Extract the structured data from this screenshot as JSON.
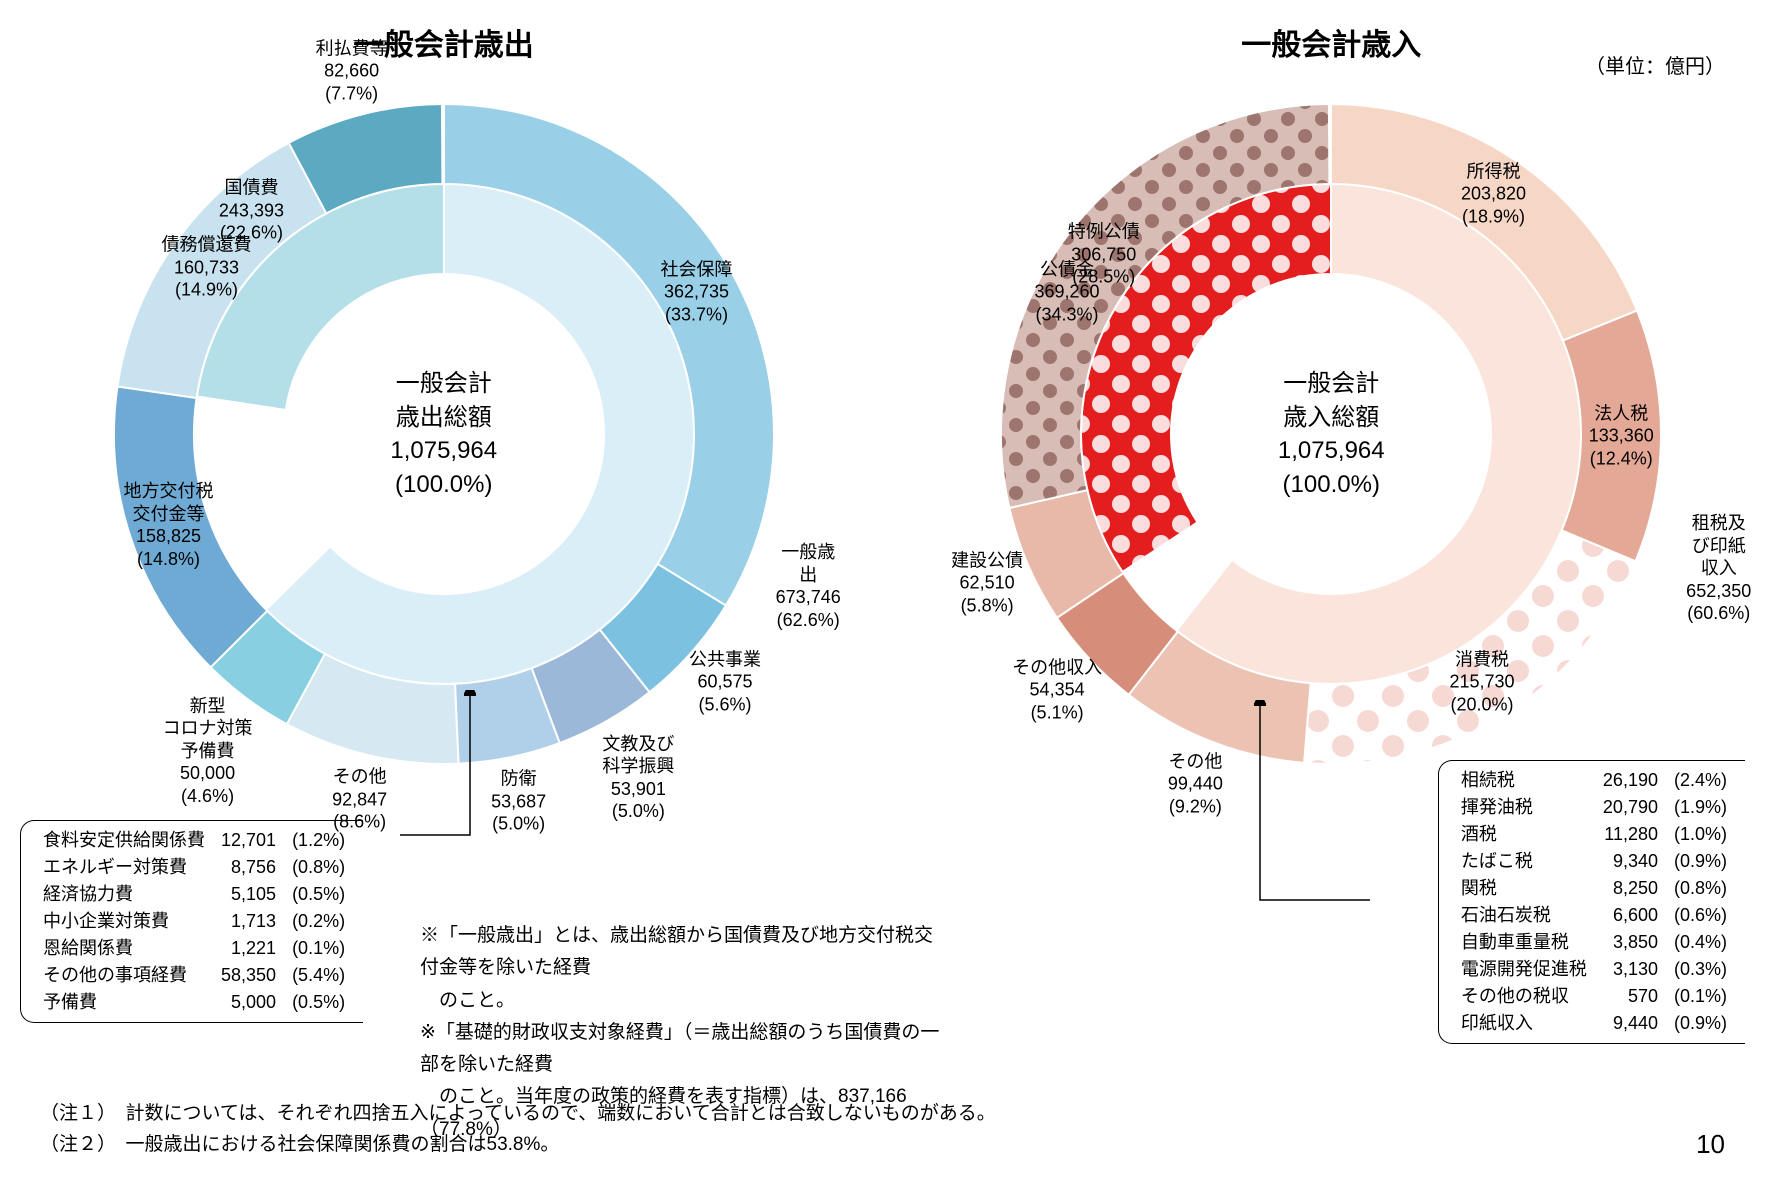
{
  "unit_label": "（単位：億円）",
  "page_number": "10",
  "expenditure": {
    "title": "一般会計歳出",
    "center": "一般会計\n歳出総額\n1,075,964\n(100.0%)",
    "outer_radius": 330,
    "inner_ring_outer": 250,
    "inner_ring_inner": 160,
    "outer": [
      {
        "label": "社会保障\n362,735\n(33.7%)",
        "pct": 33.7,
        "color": "#99d0e8"
      },
      {
        "label": "公共事業\n60,575\n(5.6%)",
        "pct": 5.6,
        "color": "#7dc1e0"
      },
      {
        "label": "文教及び\n科学振興\n53,901\n(5.0%)",
        "pct": 5.0,
        "color": "#9bb8d8"
      },
      {
        "label": "防衛\n53,687\n(5.0%)",
        "pct": 5.0,
        "color": "#b0cfe8"
      },
      {
        "label": "その他\n92,847\n(8.6%)",
        "pct": 8.6,
        "color": "#d6e8f2"
      },
      {
        "label": "新型\nコロナ対策\n予備費\n50,000\n(4.6%)",
        "pct": 4.6,
        "color": "#88cfe2"
      },
      {
        "label": "地方交付税\n交付金等\n158,825\n(14.8%)",
        "pct": 14.8,
        "color": "#6eaad4"
      },
      {
        "label": "債務償還費\n160,733\n(14.9%)",
        "pct": 14.9,
        "color": "#c9e2ef"
      },
      {
        "label": "利払費等\n82,660\n(7.7%)",
        "pct": 7.7,
        "color": "#5ca9c2"
      }
    ],
    "inner": [
      {
        "label": "一般歳出\n673,746\n(62.6%)",
        "pct": 62.6,
        "color": "#daeef7"
      },
      {
        "label": "",
        "pct": 14.8,
        "color": "#ffffff"
      },
      {
        "label": "国債費\n243,393\n(22.6%)",
        "pct": 22.6,
        "color": "#b4dfe8"
      }
    ],
    "others_detail": [
      {
        "name": "食料安定供給関係費",
        "value": "12,701",
        "pct": "(1.2%)"
      },
      {
        "name": "エネルギー対策費",
        "value": "8,756",
        "pct": "(0.8%)"
      },
      {
        "name": "経済協力費",
        "value": "5,105",
        "pct": "(0.5%)"
      },
      {
        "name": "中小企業対策費",
        "value": "1,713",
        "pct": "(0.2%)"
      },
      {
        "name": "恩給関係費",
        "value": "1,221",
        "pct": "(0.1%)"
      },
      {
        "name": "その他の事項経費",
        "value": "58,350",
        "pct": "(5.4%)"
      },
      {
        "name": "予備費",
        "value": "5,000",
        "pct": "(0.5%)"
      }
    ]
  },
  "revenue": {
    "title": "一般会計歳入",
    "center": "一般会計\n歳入総額\n1,075,964\n(100.0%)",
    "outer_radius": 330,
    "inner_ring_outer": 250,
    "inner_ring_inner": 160,
    "outer": [
      {
        "label": "所得税\n203,820\n(18.9%)",
        "pct": 18.9,
        "color": "#f6d7c6"
      },
      {
        "label": "法人税\n133,360\n(12.4%)",
        "pct": 12.4,
        "color": "#e4a896"
      },
      {
        "label": "消費税\n215,730\n(20.0%)",
        "pct": 20.0,
        "color": "#fde8e3",
        "pattern": "dots-light"
      },
      {
        "label": "その他\n99,440\n(9.2%)",
        "pct": 9.2,
        "color": "#ecc2b2"
      },
      {
        "label": "その他収入\n54,354\n(5.1%)",
        "pct": 5.1,
        "color": "#d68d7a"
      },
      {
        "label": "建設公債\n62,510\n(5.8%)",
        "pct": 5.8,
        "color": "#e8b8a8"
      },
      {
        "label": "特例公債\n306,750\n(28.5%)",
        "pct": 28.5,
        "color": "#b88076",
        "pattern": "dots-dark"
      }
    ],
    "inner": [
      {
        "label": "租税及び印紙収入\n652,350\n(60.6%)",
        "pct": 60.6,
        "color": "#fae4db"
      },
      {
        "label": "",
        "pct": 5.1,
        "color": "#ffffff"
      },
      {
        "label": "公債金\n369,260\n(34.3%)",
        "pct": 34.3,
        "color": "#e41e1e",
        "pattern": "dots-red"
      }
    ],
    "others_detail": [
      {
        "name": "相続税",
        "value": "26,190",
        "pct": "(2.4%)"
      },
      {
        "name": "揮発油税",
        "value": "20,790",
        "pct": "(1.9%)"
      },
      {
        "name": "酒税",
        "value": "11,280",
        "pct": "(1.0%)"
      },
      {
        "name": "たばこ税",
        "value": "9,340",
        "pct": "(0.9%)"
      },
      {
        "name": "関税",
        "value": "8,250",
        "pct": "(0.8%)"
      },
      {
        "name": "石油石炭税",
        "value": "6,600",
        "pct": "(0.6%)"
      },
      {
        "name": "自動車重量税",
        "value": "3,850",
        "pct": "(0.4%)"
      },
      {
        "name": "電源開発促進税",
        "value": "3,130",
        "pct": "(0.3%)"
      },
      {
        "name": "その他の税収",
        "value": "570",
        "pct": "(0.1%)"
      },
      {
        "name": "印紙収入",
        "value": "9,440",
        "pct": "(0.9%)"
      }
    ]
  },
  "mid_footnotes": "※「一般歳出」とは、歳出総額から国債費及び地方交付税交付金等を除いた経費\n　のこと。\n※「基礎的財政収支対象経費」（＝歳出総額のうち国債費の一部を除いた経費\n　のこと。当年度の政策的経費を表す指標）は、837,166（77.8%）",
  "bottom_notes": [
    "（注１）　計数については、それぞれ四捨五入によっているので、端数において合計とは合致しないものがある。",
    "（注２）　一般歳出における社会保障関係費の割合は53.8%。"
  ]
}
